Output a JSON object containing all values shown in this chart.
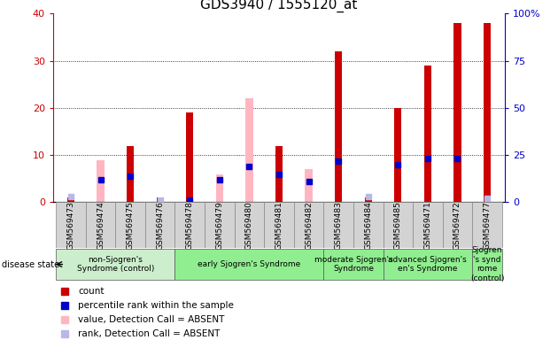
{
  "title": "GDS3940 / 1555120_at",
  "samples": [
    "GSM569473",
    "GSM569474",
    "GSM569475",
    "GSM569476",
    "GSM569478",
    "GSM569479",
    "GSM569480",
    "GSM569481",
    "GSM569482",
    "GSM569483",
    "GSM569484",
    "GSM569485",
    "GSM569471",
    "GSM569472",
    "GSM569477"
  ],
  "count_values": [
    1,
    1,
    12,
    1,
    19,
    1,
    12,
    12,
    1,
    32,
    1,
    20,
    29,
    38,
    38
  ],
  "rank_values": [
    3,
    12,
    14,
    1,
    1,
    12,
    19,
    15,
    11,
    22,
    3,
    20,
    23,
    23,
    2
  ],
  "absent_value_values": [
    0,
    9,
    0,
    1,
    0,
    6,
    22,
    0,
    7,
    0,
    0,
    0,
    0,
    0,
    0
  ],
  "absent_rank_values": [
    3,
    0,
    0,
    1,
    0,
    0,
    0,
    0,
    0,
    0,
    3,
    0,
    0,
    0,
    2
  ],
  "is_absent_value": [
    false,
    true,
    false,
    false,
    false,
    true,
    true,
    false,
    true,
    false,
    false,
    false,
    false,
    false,
    false
  ],
  "is_absent_rank": [
    true,
    false,
    false,
    true,
    false,
    false,
    false,
    false,
    false,
    false,
    true,
    false,
    false,
    false,
    true
  ],
  "group_defs": [
    {
      "start": 0,
      "end": 3,
      "label": "non-Sjogren's\nSyndrome (control)",
      "color": "#cceecc"
    },
    {
      "start": 4,
      "end": 8,
      "label": "early Sjogren's Syndrome",
      "color": "#90ee90"
    },
    {
      "start": 9,
      "end": 10,
      "label": "moderate Sjogren's\nSyndrome",
      "color": "#90ee90"
    },
    {
      "start": 11,
      "end": 13,
      "label": "advanced Sjogren's\nen's Syndrome",
      "color": "#90ee90"
    },
    {
      "start": 14,
      "end": 14,
      "label": "Sjogren\n's synd\nrome\n(control)",
      "color": "#90ee90"
    }
  ],
  "ylim_left": [
    0,
    40
  ],
  "ylim_right": [
    0,
    100
  ],
  "left_yticks": [
    0,
    10,
    20,
    30,
    40
  ],
  "right_yticks": [
    0,
    25,
    50,
    75,
    100
  ],
  "right_yticklabels": [
    "0",
    "25",
    "50",
    "75",
    "100%"
  ],
  "left_color": "#cc0000",
  "right_color": "#0000cc",
  "bar_color_count": "#cc0000",
  "bar_color_rank": "#0000cc",
  "bar_color_absent_value": "#ffb6c1",
  "bar_color_absent_rank": "#b8b8e8",
  "title_fontsize": 11,
  "tick_fontsize": 8,
  "legend_fontsize": 7.5,
  "sample_fontsize": 6.5,
  "group_fontsize": 6.5
}
